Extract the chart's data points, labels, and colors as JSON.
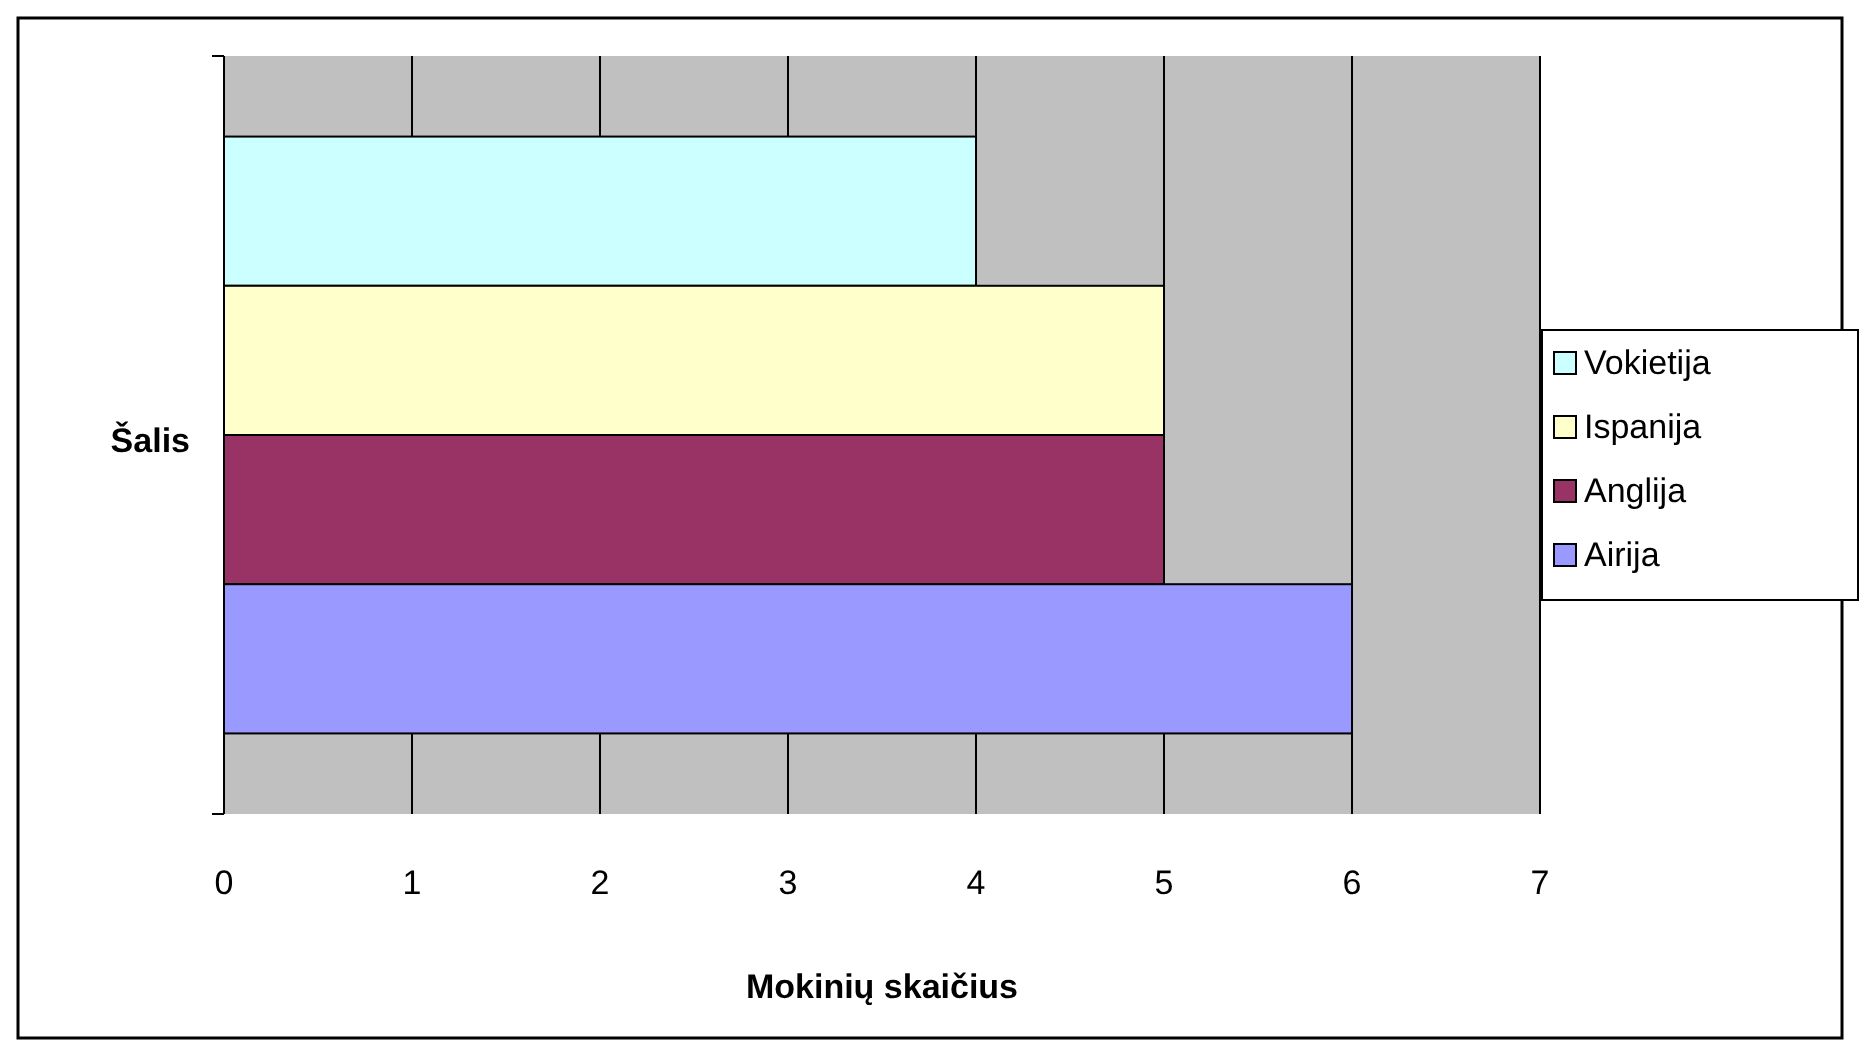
{
  "chart_data": {
    "type": "bar",
    "orientation": "horizontal",
    "xlabel": "Mokinių skaičius",
    "ylabel": "Šalis",
    "categories": [
      null
    ],
    "series": [
      {
        "name": "Vokietija",
        "color": "#ccffff",
        "values": [
          4
        ]
      },
      {
        "name": "Ispanija",
        "color": "#ffffcc",
        "values": [
          5
        ]
      },
      {
        "name": "Anglija",
        "color": "#993366",
        "values": [
          5
        ]
      },
      {
        "name": "Airija",
        "color": "#9999ff",
        "values": [
          6
        ]
      }
    ],
    "xlim": [
      0,
      7
    ],
    "xticks": [
      0,
      1,
      2,
      3,
      4,
      5,
      6,
      7
    ],
    "grid": "x",
    "legend": "right"
  }
}
